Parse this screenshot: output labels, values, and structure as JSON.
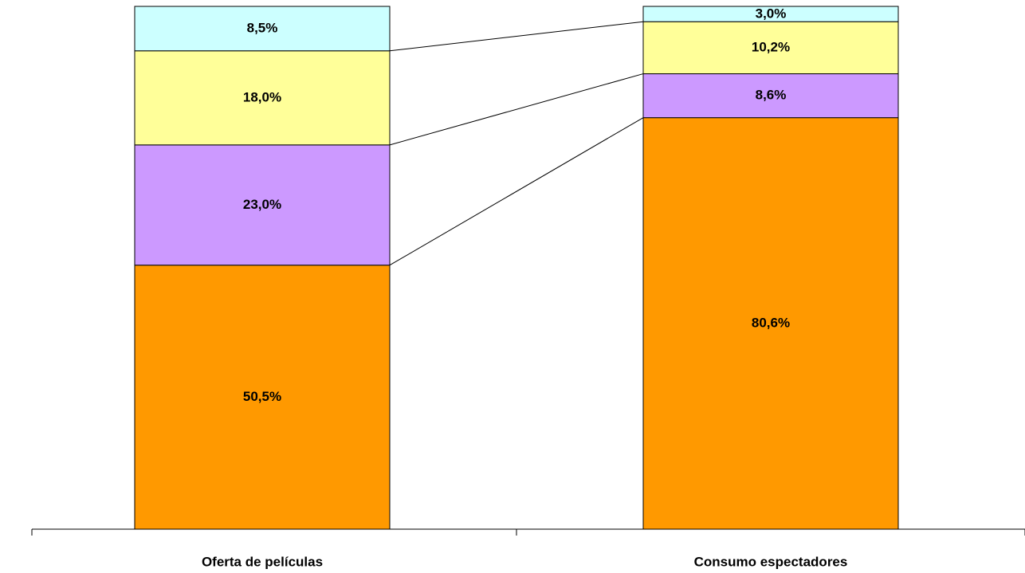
{
  "chart_data": {
    "type": "bar",
    "stacking": "percent",
    "categories": [
      "Oferta de películas",
      "Consumo espectadores"
    ],
    "series": [
      {
        "color": "#FF9900",
        "values": [
          50.5,
          80.6
        ],
        "value_labels": [
          "50,5%",
          "80,6%"
        ]
      },
      {
        "color": "#CC99FF",
        "values": [
          23.0,
          8.6
        ],
        "value_labels": [
          "23,0%",
          "8,6%"
        ]
      },
      {
        "color": "#FFFF99",
        "values": [
          18.0,
          10.2
        ],
        "value_labels": [
          "18,0%",
          "10,2%"
        ]
      },
      {
        "color": "#CCFFFF",
        "values": [
          8.5,
          3.0
        ],
        "value_labels": [
          "8,5%",
          "3,0%"
        ]
      }
    ]
  }
}
